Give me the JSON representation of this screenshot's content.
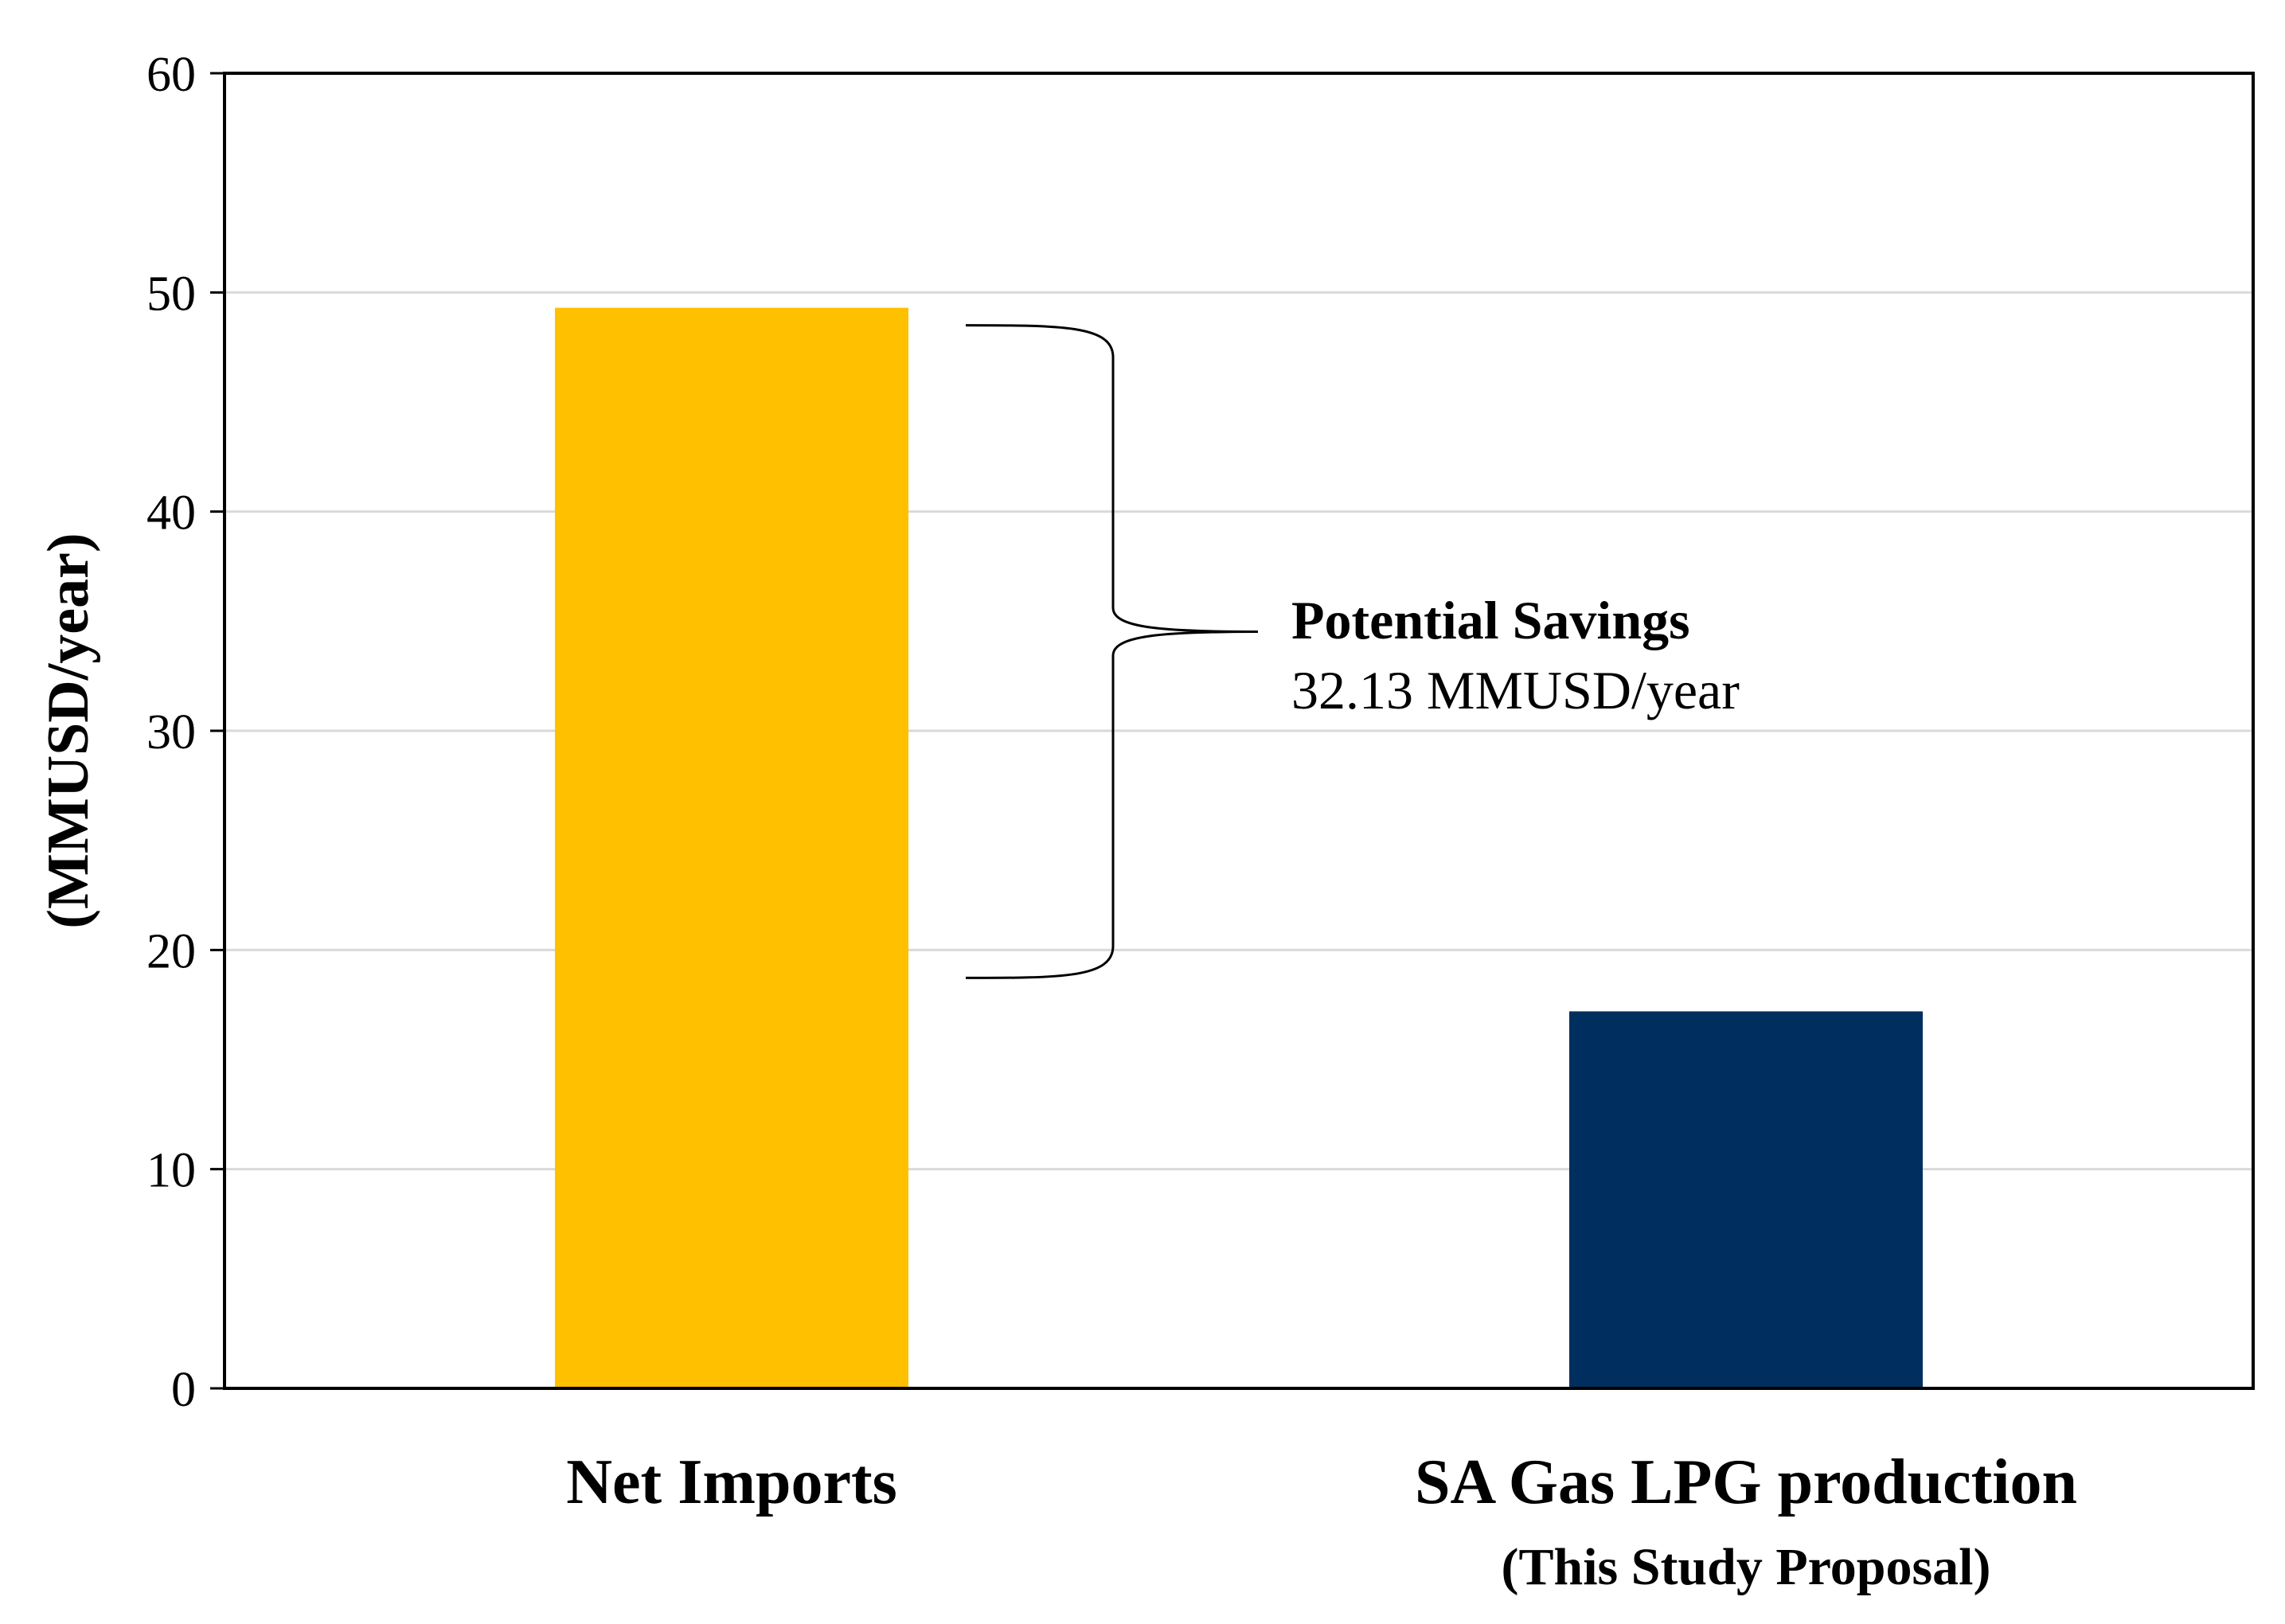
{
  "chart_data": {
    "type": "bar",
    "categories": [
      "Net Imports",
      "SA Gas LPG production"
    ],
    "category_sublabels": [
      "",
      "(This Study Proposal)"
    ],
    "values": [
      49.3,
      17.2
    ],
    "colors": [
      "#FFC000",
      "#002F5F"
    ],
    "ylabel": "(MMUSD/year)",
    "xlabel": "",
    "title": "",
    "ylim": [
      0,
      60
    ],
    "yticks": [
      0,
      10,
      20,
      30,
      40,
      50,
      60
    ],
    "grid": true,
    "legend": "none",
    "annotation": {
      "title": "Potential Savings",
      "value_text": "32.13 MMUSD/year",
      "from_value": 49.3,
      "to_value": 17.2,
      "bracket": "right-curly-brace"
    }
  }
}
